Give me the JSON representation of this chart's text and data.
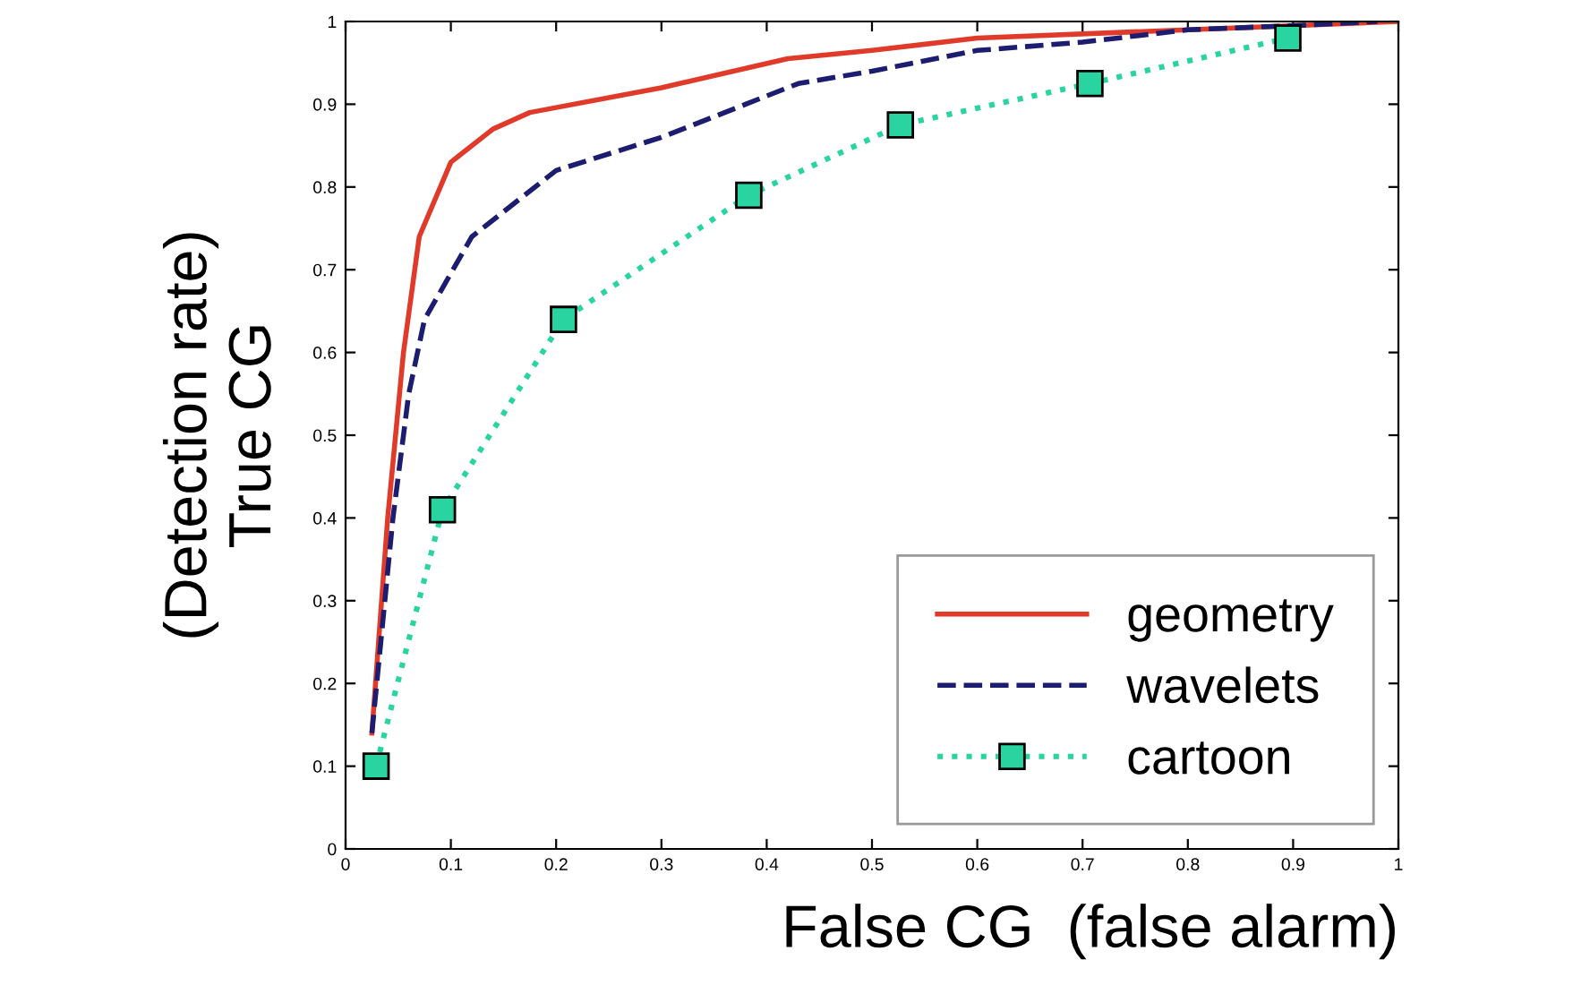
{
  "chart_data": {
    "type": "line",
    "xlabel": "False CG  (false alarm)",
    "ylabel": "(Detection rate)\nTrue CG",
    "xlim": [
      0,
      1
    ],
    "ylim": [
      0,
      1
    ],
    "xticks": [
      0,
      0.1,
      0.2,
      0.3,
      0.4,
      0.5,
      0.6,
      0.7,
      0.8,
      0.9,
      1
    ],
    "yticks": [
      0,
      0.1,
      0.2,
      0.3,
      0.4,
      0.5,
      0.6,
      0.7,
      0.8,
      0.9,
      1
    ],
    "grid": false,
    "legend": "bottom right",
    "series": [
      {
        "name": "geometry",
        "color": "#e03a2a",
        "line_style": "solid",
        "marker": "none",
        "x": [
          0.025,
          0.04,
          0.055,
          0.07,
          0.1,
          0.14,
          0.175,
          0.3,
          0.42,
          0.5,
          0.6,
          0.8,
          1
        ],
        "values": [
          0.14,
          0.4,
          0.6,
          0.74,
          0.83,
          0.87,
          0.89,
          0.92,
          0.955,
          0.965,
          0.98,
          0.99,
          1
        ]
      },
      {
        "name": "wavelets",
        "color": "#1c1c70",
        "line_style": "dashed",
        "marker": "none",
        "x": [
          0.025,
          0.045,
          0.06,
          0.075,
          0.12,
          0.2,
          0.3,
          0.38,
          0.43,
          0.5,
          0.6,
          0.7,
          0.8,
          0.9,
          0.98
        ],
        "values": [
          0.14,
          0.4,
          0.55,
          0.64,
          0.74,
          0.82,
          0.86,
          0.9,
          0.925,
          0.94,
          0.965,
          0.975,
          0.99,
          0.995,
          1
        ]
      },
      {
        "name": "cartoon",
        "color": "#2ad4a0",
        "line_style": "dotted",
        "marker": "square",
        "x": [
          0.029,
          0.092,
          0.207,
          0.383,
          0.527,
          0.707,
          0.895
        ],
        "values": [
          0.1,
          0.41,
          0.64,
          0.79,
          0.875,
          0.925,
          0.98
        ]
      }
    ]
  }
}
